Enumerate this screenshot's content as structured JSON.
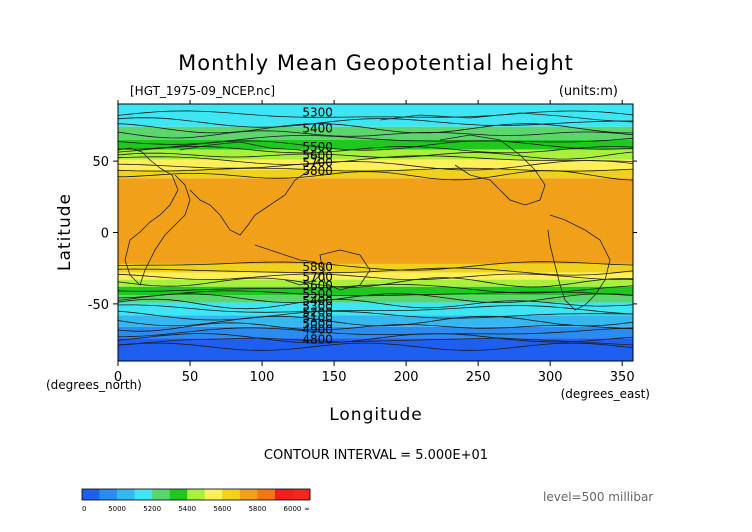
{
  "chart_data": {
    "type": "heatmap",
    "title": "Monthly Mean Geopotential height",
    "file_label": "[HGT_1975-09_NCEP.nc]",
    "units_label": "(units:m)",
    "xlabel": "Longitude",
    "ylabel": "Latitude",
    "x_unit_label": "(degrees_east)",
    "y_unit_label": "(degrees_north)",
    "xlim": [
      0,
      357.5
    ],
    "ylim": [
      -90,
      90
    ],
    "x_ticks": [
      0,
      50,
      100,
      150,
      200,
      250,
      300,
      350
    ],
    "y_ticks": [
      50,
      0,
      -50
    ],
    "contour_interval_text": "CONTOUR INTERVAL = 5.000E+01",
    "level_text": "level=500 millibar",
    "contour_labels": [
      {
        "value": "5300",
        "lon": 128,
        "lat": 84
      },
      {
        "value": "5400",
        "lon": 128,
        "lat": 73
      },
      {
        "value": "5500",
        "lon": 128,
        "lat": 60
      },
      {
        "value": "5600",
        "lon": 128,
        "lat": 54
      },
      {
        "value": "5700",
        "lon": 128,
        "lat": 49
      },
      {
        "value": "5800",
        "lon": 128,
        "lat": 43
      },
      {
        "value": "5800",
        "lon": 128,
        "lat": -24
      },
      {
        "value": "5700",
        "lon": 128,
        "lat": -31
      },
      {
        "value": "5600",
        "lon": 128,
        "lat": -37
      },
      {
        "value": "5500",
        "lon": 128,
        "lat": -43
      },
      {
        "value": "5400",
        "lon": 128,
        "lat": -48
      },
      {
        "value": "5300",
        "lon": 128,
        "lat": -52
      },
      {
        "value": "5200",
        "lon": 128,
        "lat": -56
      },
      {
        "value": "5100",
        "lon": 128,
        "lat": -60
      },
      {
        "value": "5000",
        "lon": 128,
        "lat": -64
      },
      {
        "value": "4900",
        "lon": 128,
        "lat": -68
      },
      {
        "value": "4800",
        "lon": 128,
        "lat": -75
      }
    ],
    "colorbar": {
      "tick_labels": [
        "0",
        "5000",
        "5200",
        "5400",
        "5600",
        "5800",
        "6000",
        "∞"
      ],
      "colors": [
        "#1e5ff0",
        "#2a8cf0",
        "#35b8f0",
        "#3ee6f4",
        "#5cd56c",
        "#1ec81e",
        "#a8f03c",
        "#fff05a",
        "#f0d21e",
        "#f0a019",
        "#f07814",
        "#f01e1e",
        "#f0281e"
      ]
    }
  }
}
